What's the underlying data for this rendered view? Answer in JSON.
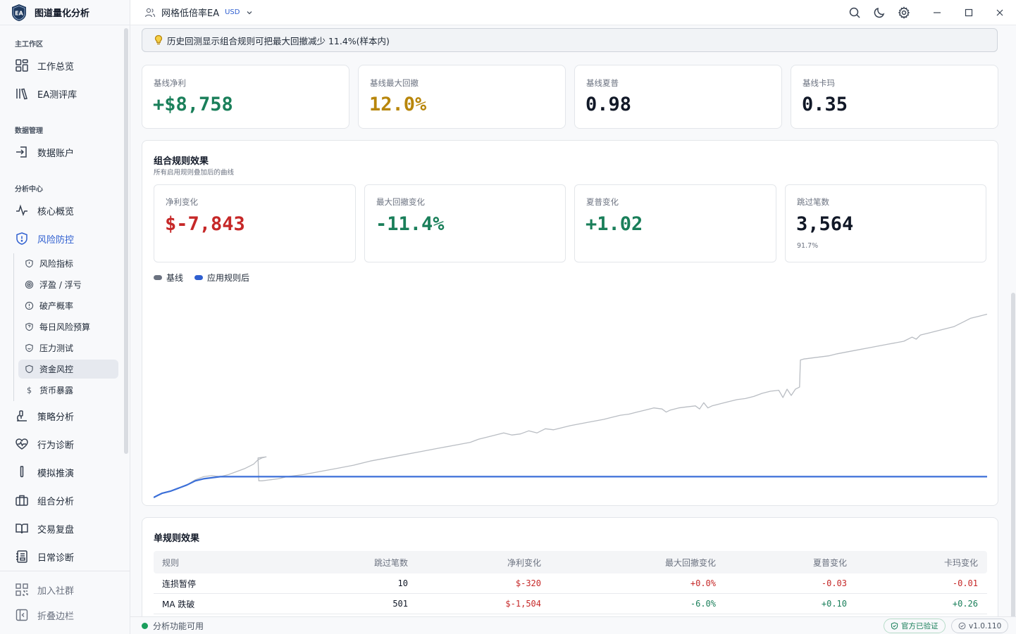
{
  "app": {
    "name": "图道量化分析",
    "logo_text": "EA"
  },
  "sidebar": {
    "sections": {
      "workspace": "主工作区",
      "data": "数据管理",
      "analysis": "分析中心"
    },
    "items": {
      "overview": "工作总览",
      "ea_library": "EA测评库",
      "data_account": "数据账户",
      "core_overview": "核心概览",
      "risk_control": "风险防控",
      "strategy": "策略分析",
      "behavior": "行为诊断",
      "simulation": "模拟推演",
      "portfolio": "组合分析",
      "trade_review": "交易复盘",
      "daily_diag": "日常诊断",
      "community": "加入社群",
      "collapse": "折叠边栏"
    },
    "risk_sub": [
      "风险指标",
      "浮盈 / 浮亏",
      "破产概率",
      "每日风险预算",
      "压力测试",
      "资金风控",
      "货币暴露"
    ],
    "active_sub": "资金风控"
  },
  "topbar": {
    "account": "网格低倍率EA",
    "currency": "USD"
  },
  "alert": {
    "text": "历史回测显示组合规则可把最大回撤减少 11.4%(样本内)"
  },
  "stats": [
    {
      "label": "基线净利",
      "value": "+$8,758",
      "color": "#1a7f5a"
    },
    {
      "label": "基线最大回撤",
      "value": "12.0%",
      "color": "#b8860b"
    },
    {
      "label": "基线夏普",
      "value": "0.98",
      "color": "#111827"
    },
    {
      "label": "基线卡玛",
      "value": "0.35",
      "color": "#111827"
    }
  ],
  "combined": {
    "title": "组合规则效果",
    "subtitle": "所有启用规则叠加后的曲线",
    "cards": [
      {
        "label": "净利变化",
        "value": "$-7,843",
        "color": "#c62828",
        "note": ""
      },
      {
        "label": "最大回撤变化",
        "value": "-11.4%",
        "color": "#1a7f5a",
        "note": ""
      },
      {
        "label": "夏普变化",
        "value": "+1.02",
        "color": "#1a7f5a",
        "note": ""
      },
      {
        "label": "跳过笔数",
        "value": "3,564",
        "color": "#111827",
        "note": "91.7%"
      }
    ],
    "legend": {
      "baseline": "基线",
      "applied": "应用规则后"
    }
  },
  "chart_data": {
    "type": "line",
    "title": "",
    "xlabel": "",
    "ylabel": "",
    "grid": false,
    "legend": "top-left",
    "ylim": [
      0,
      1
    ],
    "series": [
      {
        "name": "基线",
        "color": "#b9bdc3",
        "points": [
          [
            0,
            0.0
          ],
          [
            0.005,
            0.01
          ],
          [
            0.01,
            0.02
          ],
          [
            0.02,
            0.03
          ],
          [
            0.03,
            0.045
          ],
          [
            0.04,
            0.06
          ],
          [
            0.05,
            0.085
          ],
          [
            0.06,
            0.1
          ],
          [
            0.07,
            0.105
          ],
          [
            0.08,
            0.1
          ],
          [
            0.09,
            0.11
          ],
          [
            0.1,
            0.125
          ],
          [
            0.11,
            0.14
          ],
          [
            0.12,
            0.16
          ],
          [
            0.125,
            0.18
          ],
          [
            0.13,
            0.19
          ],
          [
            0.135,
            0.195
          ],
          [
            0.1253,
            0.19
          ],
          [
            0.1262,
            0.08
          ],
          [
            0.13,
            0.08
          ],
          [
            0.14,
            0.085
          ],
          [
            0.15,
            0.09
          ],
          [
            0.16,
            0.1
          ],
          [
            0.18,
            0.11
          ],
          [
            0.2,
            0.125
          ],
          [
            0.22,
            0.14
          ],
          [
            0.24,
            0.155
          ],
          [
            0.26,
            0.175
          ],
          [
            0.28,
            0.19
          ],
          [
            0.3,
            0.205
          ],
          [
            0.32,
            0.22
          ],
          [
            0.34,
            0.235
          ],
          [
            0.36,
            0.25
          ],
          [
            0.38,
            0.265
          ],
          [
            0.39,
            0.28
          ],
          [
            0.4,
            0.29
          ],
          [
            0.42,
            0.31
          ],
          [
            0.43,
            0.3
          ],
          [
            0.44,
            0.305
          ],
          [
            0.45,
            0.32
          ],
          [
            0.46,
            0.31
          ],
          [
            0.47,
            0.33
          ],
          [
            0.48,
            0.325
          ],
          [
            0.5,
            0.345
          ],
          [
            0.52,
            0.36
          ],
          [
            0.54,
            0.375
          ],
          [
            0.55,
            0.385
          ],
          [
            0.56,
            0.395
          ],
          [
            0.57,
            0.4
          ],
          [
            0.58,
            0.41
          ],
          [
            0.59,
            0.42
          ],
          [
            0.6,
            0.43
          ],
          [
            0.61,
            0.425
          ],
          [
            0.615,
            0.41
          ],
          [
            0.62,
            0.42
          ],
          [
            0.63,
            0.43
          ],
          [
            0.64,
            0.435
          ],
          [
            0.65,
            0.44
          ],
          [
            0.655,
            0.425
          ],
          [
            0.66,
            0.455
          ],
          [
            0.665,
            0.43
          ],
          [
            0.67,
            0.44
          ],
          [
            0.68,
            0.45
          ],
          [
            0.69,
            0.46
          ],
          [
            0.7,
            0.47
          ],
          [
            0.71,
            0.475
          ],
          [
            0.72,
            0.485
          ],
          [
            0.73,
            0.5
          ],
          [
            0.74,
            0.51
          ],
          [
            0.75,
            0.515
          ],
          [
            0.755,
            0.48
          ],
          [
            0.76,
            0.52
          ],
          [
            0.765,
            0.49
          ],
          [
            0.77,
            0.52
          ],
          [
            0.775,
            0.53
          ],
          [
            0.776,
            0.66
          ],
          [
            0.78,
            0.665
          ],
          [
            0.79,
            0.67
          ],
          [
            0.8,
            0.675
          ],
          [
            0.81,
            0.68
          ],
          [
            0.82,
            0.69
          ],
          [
            0.84,
            0.705
          ],
          [
            0.86,
            0.72
          ],
          [
            0.88,
            0.735
          ],
          [
            0.9,
            0.75
          ],
          [
            0.91,
            0.77
          ],
          [
            0.915,
            0.76
          ],
          [
            0.92,
            0.78
          ],
          [
            0.93,
            0.79
          ],
          [
            0.94,
            0.8
          ],
          [
            0.95,
            0.81
          ],
          [
            0.96,
            0.82
          ],
          [
            0.97,
            0.84
          ],
          [
            0.98,
            0.86
          ],
          [
            0.99,
            0.87
          ],
          [
            1.0,
            0.88
          ]
        ]
      },
      {
        "name": "应用规则后",
        "color": "#3b6fd8",
        "points": [
          [
            0,
            0.0
          ],
          [
            0.005,
            0.01
          ],
          [
            0.01,
            0.02
          ],
          [
            0.02,
            0.03
          ],
          [
            0.03,
            0.045
          ],
          [
            0.04,
            0.06
          ],
          [
            0.05,
            0.08
          ],
          [
            0.06,
            0.09
          ],
          [
            0.07,
            0.095
          ],
          [
            0.08,
            0.1
          ],
          [
            0.09,
            0.1
          ],
          [
            1.0,
            0.1
          ]
        ]
      }
    ]
  },
  "single": {
    "title": "单规则效果",
    "columns": [
      "规则",
      "跳过笔数",
      "净利变化",
      "最大回撤变化",
      "夏普变化",
      "卡玛变化"
    ],
    "rows": [
      {
        "rule": "连损暂停",
        "skipped": "10",
        "net": "$-320",
        "dd": "+0.0%",
        "sharpe": "-0.03",
        "calmar": "-0.01"
      },
      {
        "rule": "MA 跌破",
        "skipped": "501",
        "net": "$-1,504",
        "dd": "-6.0%",
        "sharpe": "+0.10",
        "calmar": "+0.26"
      }
    ]
  },
  "status": {
    "text": "分析功能可用",
    "verified": "官方已验证",
    "version": "v1.0.110"
  }
}
